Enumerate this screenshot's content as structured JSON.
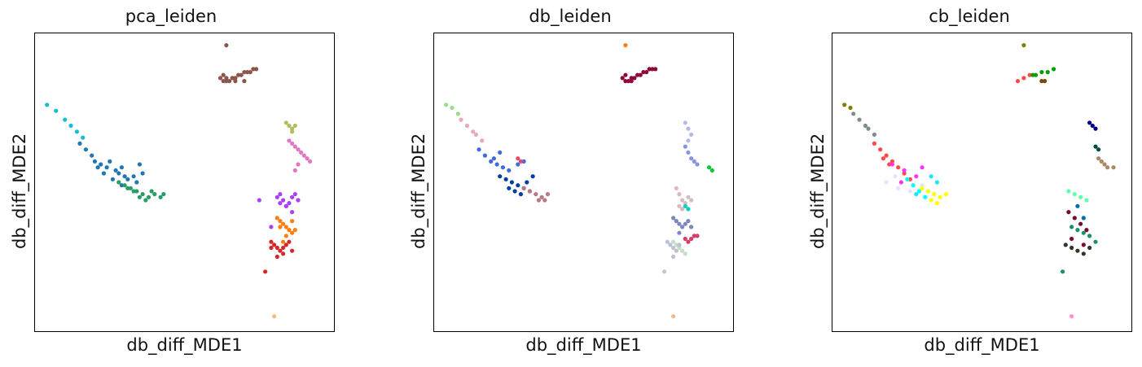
{
  "chart_data": [
    {
      "type": "scatter",
      "title": "pca_leiden",
      "xlabel": "db_diff_MDE1",
      "ylabel": "db_diff_MDE2",
      "xlim": [
        0,
        100
      ],
      "ylim": [
        0,
        100
      ],
      "grid": false,
      "legend": "none",
      "clusters": [
        {
          "color": "#17becf",
          "x": [
            4,
            7,
            10,
            12,
            14,
            16
          ],
          "y": [
            76,
            74,
            71,
            69,
            67,
            65
          ]
        },
        {
          "color": "#1f77b4",
          "x": [
            15,
            17,
            19,
            20,
            22,
            24,
            25,
            27,
            28,
            29,
            30,
            31,
            26,
            23,
            21,
            33,
            34,
            36,
            35,
            29
          ],
          "y": [
            63,
            61,
            59,
            57,
            56,
            55,
            57,
            54,
            53,
            55,
            52,
            51,
            51,
            53,
            55,
            52,
            50,
            53,
            56,
            49
          ]
        },
        {
          "color": "#279e68",
          "x": [
            28,
            30,
            32,
            34,
            36,
            38,
            39,
            40,
            42,
            43,
            37,
            35,
            33,
            31
          ],
          "y": [
            50,
            49,
            48,
            47,
            46,
            45,
            47,
            46,
            45,
            46,
            44,
            45,
            47,
            48
          ]
        },
        {
          "color": "#8c564b",
          "x": [
            62,
            63,
            64,
            65,
            66,
            67,
            68,
            69,
            70,
            71,
            72,
            73,
            74,
            70,
            67,
            64,
            63
          ],
          "y": [
            85,
            84,
            85,
            84,
            85,
            85,
            86,
            86,
            87,
            87,
            87,
            88,
            88,
            84,
            84,
            84,
            86
          ]
        },
        {
          "color": "#aa40fc",
          "x": [
            81,
            82,
            83,
            84,
            85,
            86,
            87,
            88,
            84,
            82,
            86
          ],
          "y": [
            45,
            46,
            44,
            42,
            43,
            45,
            46,
            44,
            42,
            43,
            40
          ]
        },
        {
          "color": "#ff7f0e",
          "x": [
            81,
            82,
            83,
            84,
            85,
            86,
            87,
            84,
            82,
            86,
            83
          ],
          "y": [
            38,
            37,
            36,
            35,
            34,
            33,
            34,
            32,
            35,
            37,
            30
          ]
        },
        {
          "color": "#d62728",
          "x": [
            79,
            80,
            81,
            82,
            83,
            84,
            85,
            86,
            81,
            83,
            79
          ],
          "y": [
            30,
            29,
            28,
            27,
            28,
            29,
            30,
            27,
            25,
            26,
            28
          ]
        },
        {
          "color": "#e377c2",
          "x": [
            85,
            86,
            87,
            88,
            89,
            90,
            91,
            92,
            88,
            87
          ],
          "y": [
            64,
            63,
            62,
            61,
            60,
            59,
            58,
            57,
            56,
            54
          ]
        },
        {
          "color": "#b5bd61",
          "x": [
            84,
            85,
            86,
            87,
            86
          ],
          "y": [
            70,
            69,
            68,
            69,
            67
          ]
        },
        {
          "color": "#aa40fc",
          "x": [
            75,
            79
          ],
          "y": [
            44,
            35
          ]
        },
        {
          "color": "#8c564b",
          "x": [
            64
          ],
          "y": [
            96
          ]
        },
        {
          "color": "#d62728",
          "x": [
            77
          ],
          "y": [
            20
          ]
        },
        {
          "color": "#ffbb78",
          "x": [
            80
          ],
          "y": [
            5
          ]
        }
      ]
    },
    {
      "type": "scatter",
      "title": "db_leiden",
      "xlabel": "db_diff_MDE1",
      "ylabel": "db_diff_MDE2",
      "xlim": [
        0,
        100
      ],
      "ylim": [
        0,
        100
      ],
      "grid": false,
      "legend": "none",
      "clusters": [
        {
          "color": "#98df8a",
          "x": [
            4,
            6,
            8
          ],
          "y": [
            76,
            75,
            73
          ]
        },
        {
          "color": "#e7a8b7",
          "x": [
            9,
            11,
            13,
            14,
            16
          ],
          "y": [
            71,
            69,
            67,
            66,
            64
          ]
        },
        {
          "color": "#4169e1",
          "x": [
            15,
            17,
            19,
            21,
            23,
            25,
            20,
            22,
            28,
            30
          ],
          "y": [
            61,
            59,
            57,
            56,
            55,
            54,
            58,
            60,
            56,
            57
          ]
        },
        {
          "color": "#023fa5",
          "x": [
            22,
            24,
            26,
            28,
            30,
            32,
            25,
            27,
            29,
            31,
            33
          ],
          "y": [
            52,
            51,
            50,
            49,
            48,
            47,
            48,
            47,
            46,
            50,
            52
          ]
        },
        {
          "color": "#bb7784",
          "x": [
            30,
            32,
            34,
            36,
            38,
            37,
            35
          ],
          "y": [
            48,
            47,
            46,
            45,
            46,
            44,
            44
          ]
        },
        {
          "color": "#e8496b",
          "x": [
            28,
            29
          ],
          "y": [
            58,
            57
          ]
        },
        {
          "color": "#8e063b",
          "x": [
            63,
            64,
            65,
            66,
            67,
            68,
            69,
            70,
            71,
            72,
            73,
            74,
            66,
            64
          ],
          "y": [
            85,
            84,
            84,
            85,
            85,
            86,
            86,
            87,
            87,
            88,
            88,
            88,
            84,
            86
          ]
        },
        {
          "color": "#b5bbe3",
          "x": [
            84,
            85,
            86,
            85
          ],
          "y": [
            70,
            68,
            66,
            64
          ]
        },
        {
          "color": "#8595e1",
          "x": [
            84,
            85,
            86,
            87,
            88
          ],
          "y": [
            62,
            60,
            58,
            57,
            56
          ]
        },
        {
          "color": "#11c638",
          "x": [
            92,
            93
          ],
          "y": [
            55,
            54
          ]
        },
        {
          "color": "#d6bcc0",
          "x": [
            81,
            82,
            83,
            84,
            85,
            86,
            83,
            82
          ],
          "y": [
            48,
            46,
            44,
            43,
            45,
            44,
            41,
            42
          ]
        },
        {
          "color": "#7d87b9",
          "x": [
            80,
            81,
            82,
            83,
            84,
            85,
            86,
            82
          ],
          "y": [
            38,
            37,
            36,
            35,
            36,
            37,
            35,
            33
          ]
        },
        {
          "color": "#c6dec7",
          "x": [
            80,
            81,
            82,
            83,
            84
          ],
          "y": [
            30,
            29,
            28,
            27,
            26
          ]
        },
        {
          "color": "#bec1d4",
          "x": [
            78,
            79,
            80,
            81,
            82,
            80
          ],
          "y": [
            30,
            29,
            28,
            27,
            29,
            25
          ]
        },
        {
          "color": "#d33f6a",
          "x": [
            84,
            85,
            86,
            87,
            88
          ],
          "y": [
            31,
            30,
            31,
            32,
            32
          ]
        },
        {
          "color": "#0fcfc0",
          "x": [
            84,
            85
          ],
          "y": [
            42,
            41
          ]
        },
        {
          "color": "#ff7f0e",
          "x": [
            64
          ],
          "y": [
            96
          ]
        },
        {
          "color": "#c6c6c6",
          "x": [
            77
          ],
          "y": [
            20
          ]
        },
        {
          "color": "#f0b98d",
          "x": [
            80
          ],
          "y": [
            5
          ]
        }
      ]
    },
    {
      "type": "scatter",
      "title": "cb_leiden",
      "xlabel": "db_diff_MDE1",
      "ylabel": "db_diff_MDE2",
      "xlim": [
        0,
        100
      ],
      "ylim": [
        0,
        100
      ],
      "grid": false,
      "legend": "none",
      "clusters": [
        {
          "color": "#808000",
          "x": [
            4,
            6
          ],
          "y": [
            76,
            75
          ]
        },
        {
          "color": "#7f8c8d",
          "x": [
            7,
            9,
            11,
            12,
            14
          ],
          "y": [
            73,
            71,
            69,
            68,
            66
          ]
        },
        {
          "color": "#ff4a46",
          "x": [
            14,
            16,
            18,
            20,
            22,
            24,
            26,
            19,
            17
          ],
          "y": [
            63,
            61,
            59,
            57,
            55,
            53,
            51,
            56,
            58
          ]
        },
        {
          "color": "#ff34ff",
          "x": [
            20,
            24,
            28,
            30,
            23,
            27
          ],
          "y": [
            56,
            54,
            52,
            55,
            50,
            49
          ]
        },
        {
          "color": "#e8e2ff",
          "x": [
            18,
            22,
            26,
            30,
            21
          ],
          "y": [
            50,
            48,
            47,
            49,
            52
          ]
        },
        {
          "color": "#00ffff",
          "x": [
            25,
            27,
            29,
            31
          ],
          "y": [
            51,
            49,
            47,
            45
          ]
        },
        {
          "color": "#ffff00",
          "x": [
            30,
            32,
            34,
            36,
            38,
            33,
            35
          ],
          "y": [
            48,
            47,
            46,
            45,
            46,
            44,
            43
          ]
        },
        {
          "color": "#1ce6ff",
          "x": [
            33,
            35,
            28
          ],
          "y": [
            52,
            50,
            46
          ]
        },
        {
          "color": "#ff4a46",
          "x": [
            62,
            64,
            66
          ],
          "y": [
            84,
            85,
            86
          ]
        },
        {
          "color": "#00a000",
          "x": [
            67,
            68,
            70,
            72,
            74
          ],
          "y": [
            86,
            86,
            87,
            87,
            88
          ]
        },
        {
          "color": "#7a4900",
          "x": [
            70,
            71
          ],
          "y": [
            84,
            84
          ]
        },
        {
          "color": "#000080",
          "x": [
            86,
            87,
            88
          ],
          "y": [
            70,
            69,
            68
          ]
        },
        {
          "color": "#004d43",
          "x": [
            88,
            89
          ],
          "y": [
            62,
            61
          ]
        },
        {
          "color": "#a78a67",
          "x": [
            89,
            90,
            91,
            92,
            94
          ],
          "y": [
            58,
            57,
            56,
            55,
            55
          ]
        },
        {
          "color": "#63ffac",
          "x": [
            79,
            81,
            83,
            85
          ],
          "y": [
            47,
            46,
            45,
            44
          ]
        },
        {
          "color": "#7a0a2e",
          "x": [
            79,
            81,
            83,
            85,
            80,
            84
          ],
          "y": [
            40,
            38,
            36,
            34,
            31,
            29
          ]
        },
        {
          "color": "#34362d",
          "x": [
            78,
            80,
            82,
            84,
            86
          ],
          "y": [
            29,
            28,
            27,
            26,
            28
          ]
        },
        {
          "color": "#1b8f6f",
          "x": [
            80,
            82,
            84,
            86,
            88
          ],
          "y": [
            35,
            34,
            33,
            32,
            30
          ]
        },
        {
          "color": "#006fa6",
          "x": [
            82,
            84
          ],
          "y": [
            42,
            38
          ]
        },
        {
          "color": "#808000",
          "x": [
            64
          ],
          "y": [
            96
          ]
        },
        {
          "color": "#1b8f6f",
          "x": [
            77
          ],
          "y": [
            20
          ]
        },
        {
          "color": "#ff90c9",
          "x": [
            80
          ],
          "y": [
            5
          ]
        }
      ]
    }
  ]
}
